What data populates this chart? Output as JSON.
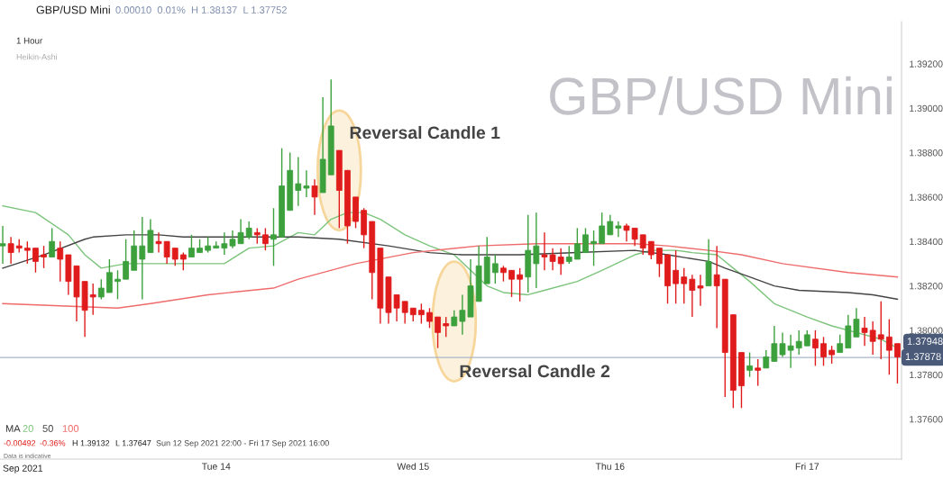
{
  "chart_data": {
    "type": "candlestick",
    "title": "GBP/USD Mini",
    "subtitle": "0.00010  0.01%  H 1.38137  L 1.37752",
    "x": [
      "2021-09-12T22:00",
      "2021-09-12T23:00",
      "2021-09-13T00:00",
      "2021-09-13T01:00",
      "2021-09-13T02:00",
      "2021-09-13T03:00",
      "2021-09-13T04:00",
      "2021-09-13T05:00",
      "2021-09-13T06:00",
      "2021-09-13T07:00",
      "2021-09-13T08:00",
      "2021-09-13T09:00",
      "2021-09-13T10:00",
      "2021-09-13T11:00",
      "2021-09-13T12:00",
      "2021-09-13T13:00",
      "2021-09-13T14:00",
      "2021-09-13T15:00",
      "2021-09-13T16:00",
      "2021-09-13T17:00",
      "2021-09-13T18:00",
      "2021-09-13T19:00",
      "2021-09-13T20:00",
      "2021-09-13T21:00",
      "2021-09-13T22:00",
      "2021-09-13T23:00",
      "2021-09-14T00:00",
      "2021-09-14T01:00",
      "2021-09-14T02:00",
      "2021-09-14T03:00",
      "2021-09-14T04:00",
      "2021-09-14T05:00",
      "2021-09-14T06:00",
      "2021-09-14T07:00",
      "2021-09-14T08:00",
      "2021-09-14T09:00",
      "2021-09-14T10:00",
      "2021-09-14T11:00",
      "2021-09-14T12:00",
      "2021-09-14T13:00",
      "2021-09-14T14:00",
      "2021-09-14T15:00",
      "2021-09-14T16:00",
      "2021-09-14T17:00",
      "2021-09-14T18:00",
      "2021-09-14T19:00",
      "2021-09-14T20:00",
      "2021-09-14T21:00",
      "2021-09-14T22:00",
      "2021-09-14T23:00",
      "2021-09-15T00:00",
      "2021-09-15T01:00",
      "2021-09-15T02:00",
      "2021-09-15T03:00",
      "2021-09-15T04:00",
      "2021-09-15T05:00",
      "2021-09-15T06:00",
      "2021-09-15T07:00",
      "2021-09-15T08:00",
      "2021-09-15T09:00",
      "2021-09-15T10:00",
      "2021-09-15T11:00",
      "2021-09-15T12:00",
      "2021-09-15T13:00",
      "2021-09-15T14:00",
      "2021-09-15T15:00",
      "2021-09-15T16:00",
      "2021-09-15T17:00",
      "2021-09-15T18:00",
      "2021-09-15T19:00",
      "2021-09-15T20:00",
      "2021-09-15T21:00",
      "2021-09-15T22:00",
      "2021-09-15T23:00",
      "2021-09-16T00:00",
      "2021-09-16T01:00",
      "2021-09-16T02:00",
      "2021-09-16T03:00",
      "2021-09-16T04:00",
      "2021-09-16T05:00",
      "2021-09-16T06:00",
      "2021-09-16T07:00",
      "2021-09-16T08:00",
      "2021-09-16T09:00",
      "2021-09-16T10:00",
      "2021-09-16T11:00",
      "2021-09-16T12:00",
      "2021-09-16T13:00",
      "2021-09-16T14:00",
      "2021-09-16T15:00",
      "2021-09-16T16:00",
      "2021-09-16T17:00",
      "2021-09-16T18:00",
      "2021-09-16T19:00",
      "2021-09-16T20:00",
      "2021-09-16T21:00",
      "2021-09-16T22:00",
      "2021-09-16T23:00",
      "2021-09-17T00:00",
      "2021-09-17T01:00",
      "2021-09-17T02:00",
      "2021-09-17T03:00",
      "2021-09-17T04:00",
      "2021-09-17T05:00",
      "2021-09-17T06:00",
      "2021-09-17T07:00",
      "2021-09-17T08:00",
      "2021-09-17T09:00",
      "2021-09-17T10:00",
      "2021-09-17T11:00"
    ],
    "ohlc": [
      [
        1.3838,
        1.3847,
        1.383,
        1.3839
      ],
      [
        1.3839,
        1.3842,
        1.383,
        1.3835
      ],
      [
        1.3838,
        1.3841,
        1.3835,
        1.3837
      ],
      [
        1.3837,
        1.384,
        1.383,
        1.3836
      ],
      [
        1.3837,
        1.3837,
        1.3826,
        1.3831
      ],
      [
        1.3834,
        1.3838,
        1.3828,
        1.3833
      ],
      [
        1.3833,
        1.3846,
        1.3833,
        1.384
      ],
      [
        1.3837,
        1.384,
        1.3822,
        1.3832
      ],
      [
        1.3834,
        1.3834,
        1.3816,
        1.3822
      ],
      [
        1.3829,
        1.3829,
        1.3804,
        1.3815
      ],
      [
        1.3822,
        1.3822,
        1.3797,
        1.3809
      ],
      [
        1.3816,
        1.3821,
        1.3807,
        1.3815
      ],
      [
        1.3815,
        1.3823,
        1.3814,
        1.3819
      ],
      [
        1.3817,
        1.3832,
        1.3817,
        1.3826
      ],
      [
        1.3822,
        1.3827,
        1.3814,
        1.3823
      ],
      [
        1.3823,
        1.3841,
        1.3823,
        1.3831
      ],
      [
        1.3827,
        1.3845,
        1.3827,
        1.3838
      ],
      [
        1.3832,
        1.3851,
        1.3814,
        1.3838
      ],
      [
        1.3835,
        1.385,
        1.3835,
        1.3845
      ],
      [
        1.384,
        1.3844,
        1.3835,
        1.3839
      ],
      [
        1.384,
        1.384,
        1.383,
        1.3833
      ],
      [
        1.3837,
        1.3837,
        1.3829,
        1.3832
      ],
      [
        1.3834,
        1.3835,
        1.3827,
        1.3832
      ],
      [
        1.3833,
        1.3843,
        1.3833,
        1.3837
      ],
      [
        1.3835,
        1.3841,
        1.3835,
        1.3837
      ],
      [
        1.3836,
        1.3842,
        1.3835,
        1.3838
      ],
      [
        1.3837,
        1.384,
        1.3837,
        1.3838
      ],
      [
        1.3837,
        1.3844,
        1.3834,
        1.3839
      ],
      [
        1.3838,
        1.3845,
        1.3837,
        1.3841
      ],
      [
        1.3839,
        1.385,
        1.3839,
        1.3844
      ],
      [
        1.3842,
        1.3849,
        1.3841,
        1.3846
      ],
      [
        1.3844,
        1.3846,
        1.3839,
        1.3843
      ],
      [
        1.3843,
        1.3846,
        1.3836,
        1.3839
      ],
      [
        1.3841,
        1.3855,
        1.3829,
        1.3843
      ],
      [
        1.3842,
        1.3882,
        1.3842,
        1.3865
      ],
      [
        1.3854,
        1.388,
        1.3854,
        1.3872
      ],
      [
        1.3863,
        1.3878,
        1.3856,
        1.3866
      ],
      [
        1.3864,
        1.3872,
        1.386,
        1.3865
      ],
      [
        1.3865,
        1.3868,
        1.3852,
        1.386
      ],
      [
        1.3862,
        1.3905,
        1.3862,
        1.3877
      ],
      [
        1.387,
        1.3913,
        1.387,
        1.3892
      ],
      [
        1.3881,
        1.3881,
        1.3846,
        1.3863
      ],
      [
        1.3872,
        1.3872,
        1.3839,
        1.3847
      ],
      [
        1.386,
        1.386,
        1.3846,
        1.3849
      ],
      [
        1.3854,
        1.3855,
        1.3837,
        1.3843
      ],
      [
        1.3849,
        1.3849,
        1.3814,
        1.3826
      ],
      [
        1.3837,
        1.3837,
        1.3803,
        1.381
      ],
      [
        1.3824,
        1.3824,
        1.3803,
        1.3808
      ],
      [
        1.3816,
        1.3816,
        1.3804,
        1.381
      ],
      [
        1.3813,
        1.3813,
        1.3803,
        1.3808
      ],
      [
        1.381,
        1.381,
        1.3804,
        1.3807
      ],
      [
        1.3809,
        1.3812,
        1.3803,
        1.3807
      ],
      [
        1.3808,
        1.381,
        1.3801,
        1.3804
      ],
      [
        1.3806,
        1.3806,
        1.3792,
        1.3799
      ],
      [
        1.3803,
        1.3806,
        1.3797,
        1.3802
      ],
      [
        1.3802,
        1.3809,
        1.3802,
        1.3806
      ],
      [
        1.3804,
        1.3816,
        1.3798,
        1.3809
      ],
      [
        1.3806,
        1.3832,
        1.3806,
        1.382
      ],
      [
        1.3813,
        1.3838,
        1.3813,
        1.3829
      ],
      [
        1.3821,
        1.3842,
        1.3821,
        1.3833
      ],
      [
        1.3826,
        1.3834,
        1.3821,
        1.383
      ],
      [
        1.3828,
        1.3829,
        1.3822,
        1.3826
      ],
      [
        1.3827,
        1.3827,
        1.3815,
        1.3823
      ],
      [
        1.3825,
        1.3828,
        1.3813,
        1.3823
      ],
      [
        1.3824,
        1.3852,
        1.3817,
        1.3836
      ],
      [
        1.383,
        1.3853,
        1.3819,
        1.3838
      ],
      [
        1.3834,
        1.3844,
        1.3827,
        1.3833
      ],
      [
        1.3834,
        1.3837,
        1.3827,
        1.3831
      ],
      [
        1.3833,
        1.3837,
        1.3825,
        1.383
      ],
      [
        1.3831,
        1.3838,
        1.383,
        1.3833
      ],
      [
        1.3832,
        1.3846,
        1.3832,
        1.3839
      ],
      [
        1.3835,
        1.3846,
        1.3835,
        1.3843
      ],
      [
        1.3839,
        1.3845,
        1.3829,
        1.384
      ],
      [
        1.3839,
        1.3853,
        1.3839,
        1.3847
      ],
      [
        1.3843,
        1.3852,
        1.3843,
        1.3849
      ],
      [
        1.3846,
        1.3849,
        1.3842,
        1.3847
      ],
      [
        1.3847,
        1.3848,
        1.384,
        1.3845
      ],
      [
        1.3846,
        1.3846,
        1.3838,
        1.3841
      ],
      [
        1.3843,
        1.3843,
        1.3834,
        1.3837
      ],
      [
        1.384,
        1.384,
        1.3832,
        1.3834
      ],
      [
        1.3837,
        1.3837,
        1.3824,
        1.383
      ],
      [
        1.3834,
        1.3834,
        1.3812,
        1.382
      ],
      [
        1.3827,
        1.3836,
        1.3812,
        1.3821
      ],
      [
        1.3824,
        1.3828,
        1.3812,
        1.3821
      ],
      [
        1.3823,
        1.3825,
        1.3806,
        1.3818
      ],
      [
        1.382,
        1.3825,
        1.3811,
        1.3819
      ],
      [
        1.382,
        1.3841,
        1.382,
        1.3831
      ],
      [
        1.3825,
        1.3838,
        1.3801,
        1.382
      ],
      [
        1.3823,
        1.3823,
        1.377,
        1.379
      ],
      [
        1.3807,
        1.3807,
        1.3765,
        1.3773
      ],
      [
        1.379,
        1.379,
        1.3765,
        1.3775
      ],
      [
        1.3782,
        1.379,
        1.3779,
        1.3784
      ],
      [
        1.3783,
        1.3787,
        1.3775,
        1.3782
      ],
      [
        1.3783,
        1.3791,
        1.3783,
        1.3788
      ],
      [
        1.3786,
        1.3802,
        1.3786,
        1.3794
      ],
      [
        1.3789,
        1.3799,
        1.3788,
        1.3794
      ],
      [
        1.3791,
        1.3798,
        1.3783,
        1.3793
      ],
      [
        1.3792,
        1.38,
        1.3789,
        1.3795
      ],
      [
        1.3793,
        1.38,
        1.3793,
        1.3798
      ],
      [
        1.3796,
        1.38,
        1.3784,
        1.3792
      ],
      [
        1.3794,
        1.3797,
        1.3784,
        1.3788
      ],
      [
        1.3791,
        1.3793,
        1.3785,
        1.3789
      ],
      [
        1.379,
        1.3798,
        1.379,
        1.3794
      ],
      [
        1.3792,
        1.3807,
        1.3792,
        1.3802
      ],
      [
        1.3797,
        1.381,
        1.3797,
        1.3805
      ],
      [
        1.3801,
        1.3806,
        1.3793,
        1.3799
      ],
      [
        1.38,
        1.3804,
        1.3789,
        1.3795
      ],
      [
        1.3798,
        1.3813,
        1.3787,
        1.3796
      ],
      [
        1.3797,
        1.3805,
        1.378,
        1.3791
      ],
      [
        1.3794,
        1.3794,
        1.3776,
        1.3788
      ]
    ],
    "colors": [
      "#3ca03c",
      "#e01b1b",
      "#e01b1b",
      "#e01b1b",
      "#e01b1b",
      "#e01b1b",
      "#3ca03c",
      "#e01b1b",
      "#e01b1b",
      "#e01b1b",
      "#e01b1b",
      "#e01b1b",
      "#3ca03c",
      "#3ca03c",
      "#3ca03c",
      "#3ca03c",
      "#3ca03c",
      "#3ca03c",
      "#3ca03c",
      "#e01b1b",
      "#e01b1b",
      "#e01b1b",
      "#e01b1b",
      "#3ca03c",
      "#3ca03c",
      "#3ca03c",
      "#3ca03c",
      "#3ca03c",
      "#3ca03c",
      "#3ca03c",
      "#3ca03c",
      "#e01b1b",
      "#e01b1b",
      "#3ca03c",
      "#3ca03c",
      "#3ca03c",
      "#3ca03c",
      "#3ca03c",
      "#e01b1b",
      "#3ca03c",
      "#3ca03c",
      "#e01b1b",
      "#e01b1b",
      "#e01b1b",
      "#e01b1b",
      "#e01b1b",
      "#e01b1b",
      "#e01b1b",
      "#e01b1b",
      "#e01b1b",
      "#e01b1b",
      "#e01b1b",
      "#e01b1b",
      "#e01b1b",
      "#e01b1b",
      "#3ca03c",
      "#3ca03c",
      "#3ca03c",
      "#3ca03c",
      "#3ca03c",
      "#3ca03c",
      "#e01b1b",
      "#e01b1b",
      "#e01b1b",
      "#3ca03c",
      "#3ca03c",
      "#e01b1b",
      "#e01b1b",
      "#e01b1b",
      "#3ca03c",
      "#3ca03c",
      "#3ca03c",
      "#3ca03c",
      "#3ca03c",
      "#3ca03c",
      "#3ca03c",
      "#e01b1b",
      "#e01b1b",
      "#e01b1b",
      "#e01b1b",
      "#e01b1b",
      "#e01b1b",
      "#e01b1b",
      "#e01b1b",
      "#e01b1b",
      "#e01b1b",
      "#3ca03c",
      "#e01b1b",
      "#e01b1b",
      "#e01b1b",
      "#e01b1b",
      "#3ca03c",
      "#e01b1b",
      "#3ca03c",
      "#3ca03c",
      "#3ca03c",
      "#3ca03c",
      "#3ca03c",
      "#3ca03c",
      "#e01b1b",
      "#e01b1b",
      "#e01b1b",
      "#3ca03c",
      "#3ca03c",
      "#3ca03c",
      "#e01b1b",
      "#e01b1b",
      "#e01b1b",
      "#e01b1b",
      "#e01b1b"
    ],
    "series": [
      {
        "name": "20",
        "type": "line",
        "color": "#7cc47c",
        "x": [
          "2021-09-12T22:00",
          "2021-09-13T02:00",
          "2021-09-13T06:00",
          "2021-09-13T08:00",
          "2021-09-13T10:00",
          "2021-09-13T13:00",
          "2021-09-13T20:00",
          "2021-09-14T01:00",
          "2021-09-14T04:00",
          "2021-09-14T07:00",
          "2021-09-14T10:00",
          "2021-09-14T12:00",
          "2021-09-14T14:00",
          "2021-09-14T16:00",
          "2021-09-14T18:00",
          "2021-09-14T20:00",
          "2021-09-14T23:00",
          "2021-09-15T02:00",
          "2021-09-15T05:00",
          "2021-09-15T07:00",
          "2021-09-15T09:00",
          "2021-09-15T11:00",
          "2021-09-15T14:00",
          "2021-09-15T16:00",
          "2021-09-15T20:00",
          "2021-09-15T23:00",
          "2021-09-16T03:00",
          "2021-09-16T05:00",
          "2021-09-16T08:00",
          "2021-09-16T10:00",
          "2021-09-16T13:00",
          "2021-09-16T15:00",
          "2021-09-16T17:00",
          "2021-09-16T20:00",
          "2021-09-17T00:00",
          "2021-09-17T03:00",
          "2021-09-17T06:00",
          "2021-09-17T09:00",
          "2021-09-17T11:00"
        ],
        "values": [
          1.3856,
          1.3853,
          1.3843,
          1.3834,
          1.3828,
          1.383,
          1.383,
          1.383,
          1.3837,
          1.3838,
          1.3844,
          1.3843,
          1.385,
          1.3853,
          1.3853,
          1.385,
          1.3843,
          1.3838,
          1.3834,
          1.3827,
          1.382,
          1.3817,
          1.3816,
          1.3818,
          1.3822,
          1.3827,
          1.3834,
          1.3836,
          1.3836,
          1.3835,
          1.3834,
          1.3828,
          1.3822,
          1.3812,
          1.3806,
          1.3802,
          1.3799,
          1.3796,
          1.3792
        ]
      },
      {
        "name": "50",
        "type": "line",
        "color": "#444444",
        "x": [
          "2021-09-12T22:00",
          "2021-09-13T03:00",
          "2021-09-13T08:00",
          "2021-09-13T09:00",
          "2021-09-13T13:00",
          "2021-09-13T17:00",
          "2021-09-13T20:00",
          "2021-09-14T07:00",
          "2021-09-14T10:00",
          "2021-09-14T15:00",
          "2021-09-14T21:00",
          "2021-09-15T02:00",
          "2021-09-15T06:00",
          "2021-09-15T13:00",
          "2021-09-15T20:00",
          "2021-09-16T03:00",
          "2021-09-16T07:00",
          "2021-09-16T12:00",
          "2021-09-16T14:00",
          "2021-09-16T17:00",
          "2021-09-16T20:00",
          "2021-09-16T23:00",
          "2021-09-17T05:00",
          "2021-09-17T08:00",
          "2021-09-17T11:00"
        ],
        "values": [
          1.3828,
          1.3834,
          1.3841,
          1.3842,
          1.3843,
          1.3843,
          1.3842,
          1.3842,
          1.3842,
          1.3841,
          1.3838,
          1.3835,
          1.3834,
          1.3834,
          1.3835,
          1.3836,
          1.3834,
          1.3831,
          1.3828,
          1.3824,
          1.382,
          1.3818,
          1.3817,
          1.3816,
          1.3814
        ]
      },
      {
        "name": "100",
        "type": "line",
        "color": "#ef6b6b",
        "x": [
          "2021-09-12T22:00",
          "2021-09-13T12:00",
          "2021-09-13T16:00",
          "2021-09-13T23:00",
          "2021-09-14T07:00",
          "2021-09-14T10:00",
          "2021-09-14T17:00",
          "2021-09-15T00:00",
          "2021-09-15T08:00",
          "2021-09-15T15:00",
          "2021-09-15T20:00",
          "2021-09-16T03:00",
          "2021-09-16T07:00",
          "2021-09-16T12:00",
          "2021-09-16T16:00",
          "2021-09-16T21:00",
          "2021-09-17T05:00",
          "2021-09-17T11:00"
        ],
        "values": [
          1.3812,
          1.381,
          1.3812,
          1.3816,
          1.3819,
          1.3823,
          1.383,
          1.3835,
          1.3838,
          1.3839,
          1.3839,
          1.3839,
          1.3838,
          1.3836,
          1.3834,
          1.383,
          1.3826,
          1.3824
        ]
      }
    ],
    "xlim": [
      "2021-09-12T21:40",
      "2021-09-17T11:30"
    ],
    "xticks": [
      {
        "value": "2021-09-14T00:00",
        "label": "Tue 14"
      },
      {
        "value": "2021-09-15T00:00",
        "label": "Wed 15"
      },
      {
        "value": "2021-09-16T00:00",
        "label": "Thu 16"
      },
      {
        "value": "2021-09-17T00:00",
        "label": "Fri 17"
      }
    ],
    "ylim": [
      1.3742,
      1.3939
    ],
    "yticks": [
      {
        "value": 1.376,
        "label": "1.37600"
      },
      {
        "value": 1.378,
        "label": "1.37800"
      },
      {
        "value": 1.38,
        "label": "1.38000"
      },
      {
        "value": 1.382,
        "label": "1.38200"
      },
      {
        "value": 1.384,
        "label": "1.38400"
      },
      {
        "value": 1.386,
        "label": "1.38600"
      },
      {
        "value": 1.388,
        "label": "1.38800"
      },
      {
        "value": 1.39,
        "label": "1.39000"
      },
      {
        "value": 1.392,
        "label": "1.39200"
      }
    ],
    "ref_lines": [
      {
        "axis": "y",
        "value": 1.37878,
        "label": "1.37878",
        "color": "#aab4c8"
      }
    ],
    "annotations": [
      "1 Hour",
      "Heikin-Ashi",
      "GBP/USD Mini",
      "MA",
      "-0.00492",
      "-0.36%",
      "H 1.39132",
      "L 1.37647",
      "Sun 12 Sep 2021 22:00 - Fri 17 Sep 2021 16:00",
      "Data is indicative",
      "Sep 2021",
      {
        "text": "Reversal Candle 1",
        "x": "2021-09-14T15:00",
        "y": 1.3872
      },
      {
        "text": "Reversal Candle 2",
        "x": "2021-09-15T05:00",
        "y": 1.3804
      },
      "1.37948"
    ],
    "legend": false,
    "grid": false
  }
}
